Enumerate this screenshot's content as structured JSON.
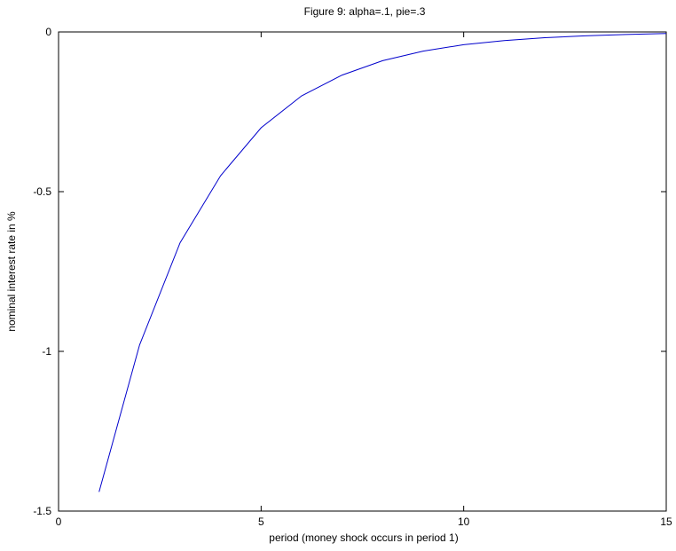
{
  "chart_data": {
    "type": "line",
    "title": "Figure 9: alpha=.1, pie=.3",
    "xlabel": "period (money shock occurs in period 1)",
    "ylabel": "nominal interest rate in %",
    "xlim": [
      0,
      15
    ],
    "ylim": [
      -1.5,
      0
    ],
    "xticks": [
      0,
      5,
      10,
      15
    ],
    "yticks": [
      -1.5,
      -1,
      -0.5,
      0
    ],
    "xtick_labels": [
      "0",
      "5",
      "10",
      "15"
    ],
    "ytick_labels": [
      "-1.5",
      "-1",
      "-0.5",
      "0"
    ],
    "grid": false,
    "series": [
      {
        "color": "#0000cc",
        "x": [
          1,
          2,
          3,
          4,
          5,
          6,
          7,
          8,
          9,
          10,
          11,
          12,
          13,
          14,
          15
        ],
        "y": [
          -1.44,
          -0.98,
          -0.66,
          -0.45,
          -0.3,
          -0.2,
          -0.135,
          -0.09,
          -0.06,
          -0.04,
          -0.027,
          -0.018,
          -0.012,
          -0.008,
          -0.005
        ]
      }
    ]
  }
}
